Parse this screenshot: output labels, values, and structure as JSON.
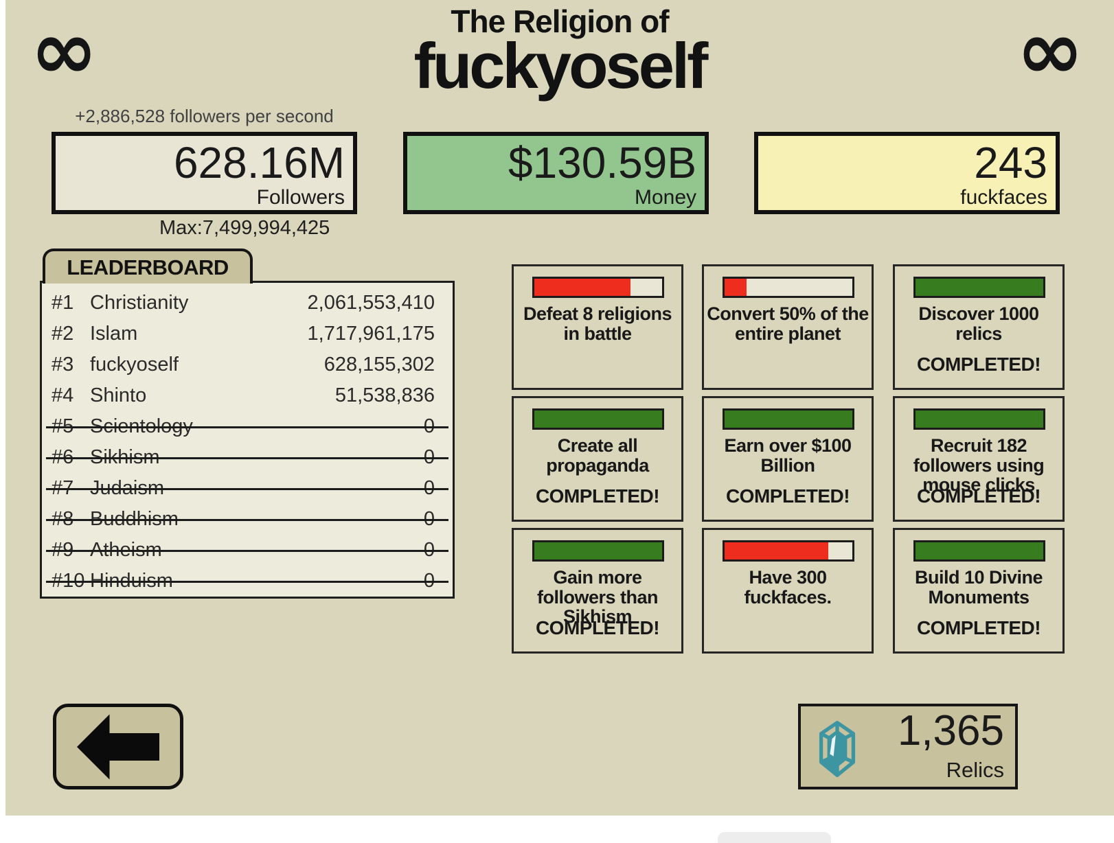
{
  "header": {
    "infinity": "∞",
    "title_line1": "The Religion of",
    "title_line2": "fuckyoself"
  },
  "stats": {
    "rate_text": "+2,886,528 followers per second",
    "followers": {
      "value": "628.16M",
      "label": "Followers",
      "max_text": "Max:7,499,994,425",
      "bg": "#e8e5d4"
    },
    "money": {
      "value": "$130.59B",
      "label": "Money",
      "bg": "#92c68e"
    },
    "fuckfaces": {
      "value": "243",
      "label": "fuckfaces",
      "bg": "#f8f1b6"
    }
  },
  "leaderboard": {
    "title": "LEADERBOARD",
    "rows": [
      {
        "rank": "#1",
        "name": "Christianity",
        "value": "2,061,553,410",
        "struck": false
      },
      {
        "rank": "#2",
        "name": "Islam",
        "value": "1,717,961,175",
        "struck": false
      },
      {
        "rank": "#3",
        "name": "fuckyoself",
        "value": "628,155,302",
        "struck": false
      },
      {
        "rank": "#4",
        "name": "Shinto",
        "value": "51,538,836",
        "struck": false
      },
      {
        "rank": "#5",
        "name": "Scientology",
        "value": "0",
        "struck": true
      },
      {
        "rank": "#6",
        "name": "Sikhism",
        "value": "0",
        "struck": true
      },
      {
        "rank": "#7",
        "name": "Judaism",
        "value": "0",
        "struck": true
      },
      {
        "rank": "#8",
        "name": "Buddhism",
        "value": "0",
        "struck": true
      },
      {
        "rank": "#9",
        "name": "Atheism",
        "value": "0",
        "struck": true
      },
      {
        "rank": "#10",
        "name": "Hinduism",
        "value": "0",
        "struck": true
      }
    ]
  },
  "completed_text": "COMPLETED!",
  "achievement_colors": {
    "in_progress": "#ee2d1e",
    "complete": "#377d20",
    "bar_empty": "#e9e6d5"
  },
  "achievements": [
    {
      "title": "Defeat 8 religions in battle",
      "progress": 0.75,
      "completed": false
    },
    {
      "title": "Convert 50% of the entire planet",
      "progress": 0.17,
      "completed": false
    },
    {
      "title": "Discover 1000 relics",
      "progress": 1,
      "completed": true
    },
    {
      "title": "Create all propaganda",
      "progress": 1,
      "completed": true
    },
    {
      "title": "Earn over $100 Billion",
      "progress": 1,
      "completed": true
    },
    {
      "title": "Recruit 182 followers using mouse clicks",
      "progress": 1,
      "completed": true
    },
    {
      "title": "Gain more followers than Sikhism",
      "progress": 1,
      "completed": true
    },
    {
      "title": "Have 300 fuckfaces.",
      "progress": 0.81,
      "completed": false
    },
    {
      "title": "Build 10 Divine Monuments",
      "progress": 1,
      "completed": true
    }
  ],
  "footer": {
    "relics": {
      "value": "1,365",
      "label": "Relics"
    }
  }
}
